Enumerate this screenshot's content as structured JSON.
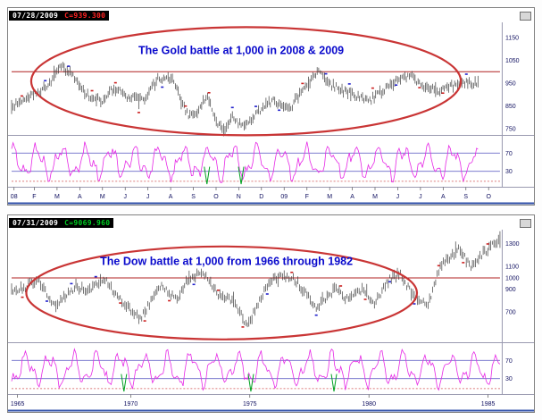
{
  "colors": {
    "price": "#3c3c3c",
    "battle_line": "#b02020",
    "ellipse": "#c93535",
    "annotation": "#0a0acc",
    "oscillator": "#e628e6",
    "osc_line": "#6a6ac8",
    "osc_dotted": "#d05050",
    "green_spike": "#00a020",
    "axis_text": "#101060",
    "marker_blue": "#2222cc",
    "marker_red": "#cc2222",
    "separator": "#9a9ab0",
    "bottom_line": "#2f4fa8"
  },
  "chart_data": [
    {
      "type": "line",
      "annotation": "The Gold battle at 1,000 in 2008 & 2009",
      "header": {
        "date": "07/28/2009",
        "close": "C=939.300",
        "close_color": "#ff2222"
      },
      "battle_level": 1000,
      "ylim": [
        730,
        1205
      ],
      "yticks": [
        1150,
        1050,
        950,
        850,
        750
      ],
      "xticks": [
        {
          "label": "08",
          "pos": 0.005
        },
        {
          "label": "F",
          "pos": 0.0465
        },
        {
          "label": "M",
          "pos": 0.093
        },
        {
          "label": "A",
          "pos": 0.1395
        },
        {
          "label": "M",
          "pos": 0.186
        },
        {
          "label": "J",
          "pos": 0.2326
        },
        {
          "label": "J",
          "pos": 0.2791
        },
        {
          "label": "A",
          "pos": 0.3256
        },
        {
          "label": "S",
          "pos": 0.3721
        },
        {
          "label": "O",
          "pos": 0.4186
        },
        {
          "label": "N",
          "pos": 0.4651
        },
        {
          "label": "D",
          "pos": 0.5116
        },
        {
          "label": "09",
          "pos": 0.5581
        },
        {
          "label": "F",
          "pos": 0.6047
        },
        {
          "label": "M",
          "pos": 0.6512
        },
        {
          "label": "A",
          "pos": 0.6977
        },
        {
          "label": "M",
          "pos": 0.7442
        },
        {
          "label": "J",
          "pos": 0.7907
        },
        {
          "label": "J",
          "pos": 0.8372
        },
        {
          "label": "A",
          "pos": 0.8837
        },
        {
          "label": "S",
          "pos": 0.9302
        },
        {
          "label": "O",
          "pos": 0.9767
        }
      ],
      "keypoints": [
        [
          0.0,
          845
        ],
        [
          0.047,
          905
        ],
        [
          0.07,
          930
        ],
        [
          0.102,
          1025
        ],
        [
          0.135,
          960
        ],
        [
          0.149,
          905
        ],
        [
          0.186,
          870
        ],
        [
          0.209,
          930
        ],
        [
          0.242,
          885
        ],
        [
          0.27,
          875
        ],
        [
          0.302,
          975
        ],
        [
          0.33,
          960
        ],
        [
          0.363,
          800
        ],
        [
          0.385,
          830
        ],
        [
          0.4,
          905
        ],
        [
          0.419,
          780
        ],
        [
          0.433,
          735
        ],
        [
          0.452,
          800
        ],
        [
          0.474,
          755
        ],
        [
          0.5,
          810
        ],
        [
          0.535,
          875
        ],
        [
          0.567,
          830
        ],
        [
          0.59,
          900
        ],
        [
          0.628,
          1000
        ],
        [
          0.651,
          945
        ],
        [
          0.674,
          920
        ],
        [
          0.712,
          890
        ],
        [
          0.735,
          875
        ],
        [
          0.767,
          925
        ],
        [
          0.79,
          960
        ],
        [
          0.814,
          985
        ],
        [
          0.846,
          930
        ],
        [
          0.874,
          915
        ],
        [
          0.893,
          930
        ],
        [
          0.907,
          940
        ],
        [
          0.93,
          955
        ],
        [
          0.955,
          945
        ]
      ],
      "samples": 320,
      "seed": 11,
      "osc": {
        "seed": 5,
        "f1": 120,
        "f2": 290,
        "phase": 1.3,
        "lines": [
          70,
          30
        ],
        "labels": [
          "70",
          "30"
        ],
        "dotted_level": 8,
        "green_spikes": [
          0.4,
          0.47
        ]
      },
      "ellipse": {
        "cx": 0.48,
        "cy": 0.52,
        "rx": 0.44,
        "ry": 0.5
      },
      "annotation_pos": {
        "x": 0.47,
        "y": 0.27
      }
    },
    {
      "type": "line",
      "annotation": "The Dow battle at 1,000 from 1966 through 1982",
      "header": {
        "date": "07/31/2009",
        "close": "C=9069.960",
        "close_color": "#00cc22"
      },
      "battle_level": 1000,
      "ylim": [
        450,
        1400
      ],
      "yticks": [
        1300,
        1100,
        1000,
        900,
        700
      ],
      "xticks": [
        {
          "label": "1965",
          "pos": 0.012
        },
        {
          "label": "1970",
          "pos": 0.2439
        },
        {
          "label": "1975",
          "pos": 0.4878
        },
        {
          "label": "1980",
          "pos": 0.7317
        },
        {
          "label": "1985",
          "pos": 0.9756
        }
      ],
      "keypoints": [
        [
          0.0,
          880
        ],
        [
          0.024,
          910
        ],
        [
          0.054,
          995
        ],
        [
          0.088,
          745
        ],
        [
          0.132,
          930
        ],
        [
          0.156,
          880
        ],
        [
          0.19,
          985
        ],
        [
          0.224,
          800
        ],
        [
          0.263,
          635
        ],
        [
          0.307,
          950
        ],
        [
          0.337,
          800
        ],
        [
          0.356,
          960
        ],
        [
          0.39,
          1050
        ],
        [
          0.424,
          850
        ],
        [
          0.454,
          790
        ],
        [
          0.483,
          580
        ],
        [
          0.517,
          880
        ],
        [
          0.537,
          1000
        ],
        [
          0.576,
          1010
        ],
        [
          0.624,
          745
        ],
        [
          0.663,
          900
        ],
        [
          0.683,
          830
        ],
        [
          0.722,
          900
        ],
        [
          0.741,
          760
        ],
        [
          0.776,
          1000
        ],
        [
          0.795,
          1030
        ],
        [
          0.829,
          800
        ],
        [
          0.854,
          780
        ],
        [
          0.878,
          1100
        ],
        [
          0.917,
          1260
        ],
        [
          0.941,
          1080
        ],
        [
          0.966,
          1220
        ],
        [
          0.995,
          1330
        ],
        [
          1.0,
          1340
        ]
      ],
      "samples": 320,
      "seed": 23,
      "osc": {
        "seed": 9,
        "f1": 130,
        "f2": 300,
        "phase": 4.0,
        "lines": [
          70,
          30
        ],
        "labels": [
          "70",
          "30"
        ],
        "dotted_level": 8,
        "green_spikes": [
          0.23,
          0.49,
          0.66
        ]
      },
      "ellipse": {
        "cx": 0.43,
        "cy": 0.56,
        "rx": 0.4,
        "ry": 0.43
      },
      "annotation_pos": {
        "x": 0.44,
        "y": 0.3
      }
    }
  ]
}
